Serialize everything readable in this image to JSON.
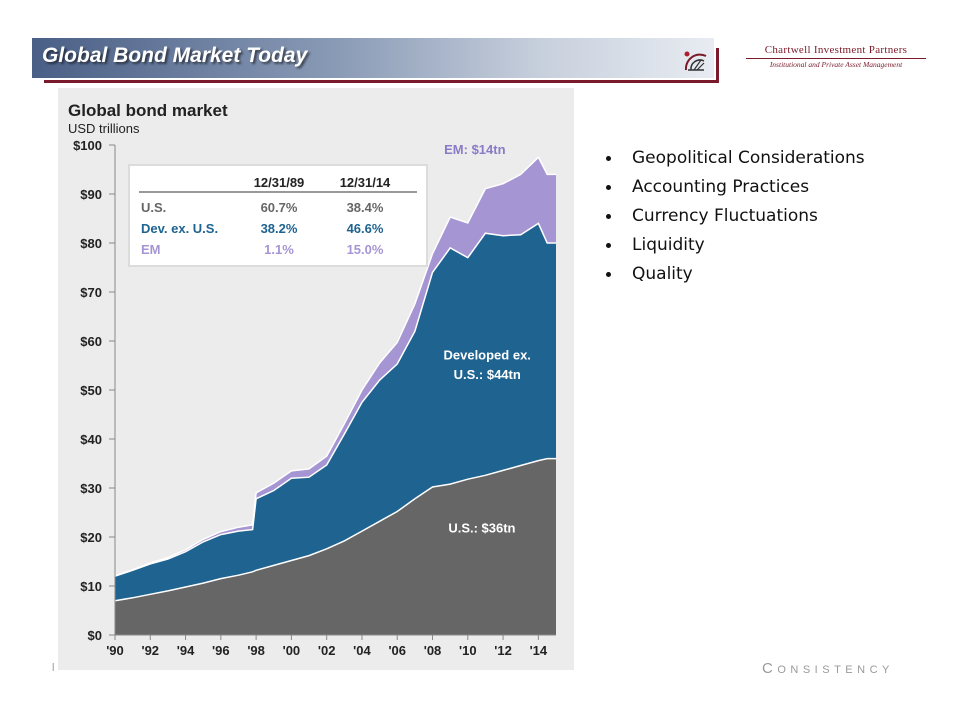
{
  "header": {
    "title": "Global Bond Market Today",
    "brand_name": "Chartwell Investment Partners",
    "brand_tagline": "Institutional and Private Asset Management"
  },
  "bullets": [
    "Geopolitical Considerations",
    "Accounting Practices",
    "Currency Fluctuations",
    "Liquidity",
    "Quality"
  ],
  "footer": {
    "left_mark": "l",
    "right_initial": "C",
    "right_rest": "ONSISTENCY"
  },
  "colors": {
    "us": "#666666",
    "developed": "#1f6391",
    "em": "#a695d3",
    "brand": "#7b1a2a"
  },
  "chart_data": {
    "type": "area",
    "stacked": true,
    "title": "Global bond market",
    "ylabel": "USD trillions",
    "ylim": [
      0,
      100
    ],
    "yticks": [
      "$0",
      "$10",
      "$20",
      "$30",
      "$40",
      "$50",
      "$60",
      "$70",
      "$80",
      "$90",
      "$100"
    ],
    "xlim": [
      1990,
      2015
    ],
    "xticks": [
      "'90",
      "'92",
      "'94",
      "'96",
      "'98",
      "'00",
      "'02",
      "'04",
      "'06",
      "'08",
      "'10",
      "'12",
      "'14"
    ],
    "grid": false,
    "x": [
      1990,
      1991,
      1992,
      1993,
      1994,
      1995,
      1996,
      1997,
      1997.8,
      1998,
      1999,
      2000,
      2001,
      2002,
      2003,
      2004,
      2005,
      2006,
      2007,
      2008,
      2009,
      2010,
      2011,
      2012,
      2013,
      2014,
      2014.5,
      2015
    ],
    "series": [
      {
        "name": "U.S.: $36tn",
        "key": "us",
        "values": [
          7,
          7.6,
          8.3,
          9,
          9.8,
          10.6,
          11.5,
          12.2,
          12.9,
          13.2,
          14.2,
          15.2,
          16.2,
          17.6,
          19.2,
          21.2,
          23.2,
          25.2,
          27.8,
          30.2,
          30.8,
          31.8,
          32.6,
          33.6,
          34.6,
          35.6,
          36,
          36
        ]
      },
      {
        "name": "Developed ex. U.S.: $44tn",
        "key": "developed",
        "values": [
          5,
          5.6,
          6.2,
          6.5,
          7.2,
          8.4,
          9,
          9,
          8.6,
          14.6,
          15.3,
          16.8,
          16,
          17.1,
          21.8,
          26.3,
          28.8,
          30.1,
          34.2,
          43.8,
          48.2,
          45.2,
          49.4,
          47.9,
          47.1,
          48.4,
          44,
          44
        ]
      },
      {
        "name": "EM: $14tn",
        "key": "em",
        "values": [
          0.1,
          0.1,
          0.2,
          0.3,
          0.4,
          0.5,
          0.6,
          0.8,
          1,
          1.2,
          1.5,
          1.5,
          1.7,
          1.8,
          2.1,
          2.5,
          3.5,
          4.4,
          5.6,
          3.8,
          6.3,
          7.1,
          9.1,
          10.6,
          12.3,
          13.5,
          14,
          14
        ]
      }
    ],
    "annotations": [
      {
        "text": "EM: $14tn",
        "series": "em"
      },
      {
        "text": "Developed ex.",
        "series": "developed"
      },
      {
        "text": "U.S.: $44tn",
        "series": "developed"
      },
      {
        "text": "U.S.: $36tn",
        "series": "us"
      }
    ],
    "inset_table": {
      "columns": [
        "",
        "12/31/89",
        "12/31/14"
      ],
      "rows": [
        {
          "label": "U.S.",
          "c1": "60.7%",
          "c2": "38.4%",
          "color": "#666666"
        },
        {
          "label": "Dev. ex. U.S.",
          "c1": "38.2%",
          "c2": "46.6%",
          "color": "#1f6391"
        },
        {
          "label": "EM",
          "c1": "1.1%",
          "c2": "15.0%",
          "color": "#a695d3"
        }
      ]
    }
  }
}
